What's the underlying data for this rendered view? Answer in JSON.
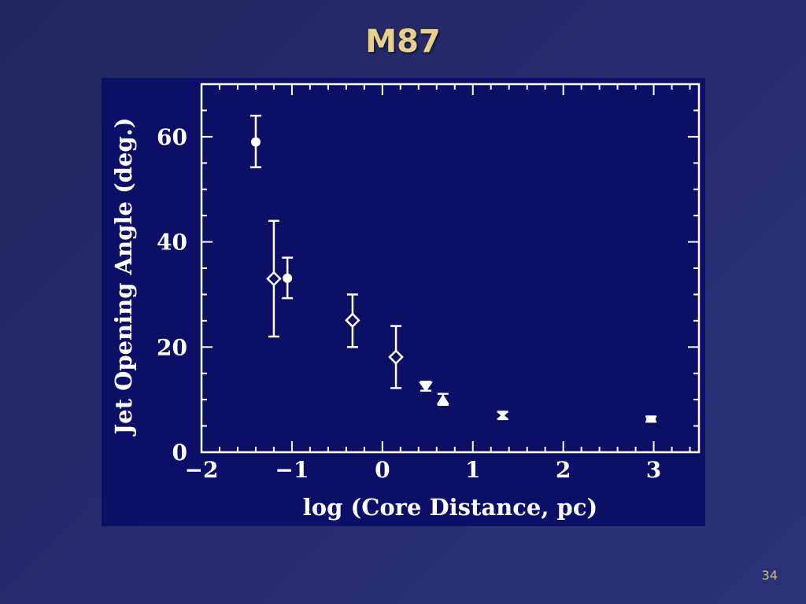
{
  "slide": {
    "title": "M87",
    "page_number": "34"
  },
  "colors": {
    "background": "#262a68",
    "plot_background": "#0b0f66",
    "ink": "#ffffff",
    "title": "#e6d08a",
    "page_number": "#c9c26a"
  },
  "chart_data": {
    "type": "scatter",
    "title": "",
    "xlabel": "log (Core Distance, pc)",
    "ylabel": "Jet Opening Angle (deg.)",
    "xlim": [
      -2,
      3.5
    ],
    "ylim": [
      0,
      70
    ],
    "x_ticks": [
      -2,
      -1,
      0,
      1,
      2,
      3
    ],
    "x_tick_labels": [
      "−2",
      "−1",
      "0",
      "1",
      "2",
      "3"
    ],
    "y_ticks": [
      0,
      20,
      40,
      60
    ],
    "y_tick_labels": [
      "0",
      "20",
      "40",
      "60"
    ],
    "grid": false,
    "legend": "none",
    "points": [
      {
        "x": -1.4,
        "y": 59.0,
        "y_low": 54.2,
        "y_high": 64.0,
        "marker": "circle"
      },
      {
        "x": -1.2,
        "y": 33.0,
        "y_low": 22.0,
        "y_high": 44.0,
        "marker": "diamond"
      },
      {
        "x": -1.05,
        "y": 33.1,
        "y_low": 29.3,
        "y_high": 37.0,
        "marker": "circle"
      },
      {
        "x": -0.33,
        "y": 25.1,
        "y_low": 20.0,
        "y_high": 30.0,
        "marker": "diamond"
      },
      {
        "x": 0.15,
        "y": 18.1,
        "y_low": 12.2,
        "y_high": 24.0,
        "marker": "diamond"
      },
      {
        "x": 0.48,
        "y": 12.5,
        "y_low": 11.7,
        "y_high": 13.4,
        "marker": "triangle-down"
      },
      {
        "x": 0.67,
        "y": 10.0,
        "y_low": 9.0,
        "y_high": 11.1,
        "marker": "triangle-up"
      },
      {
        "x": 1.33,
        "y": 7.0,
        "y_low": 6.3,
        "y_high": 7.7,
        "marker": "cross"
      },
      {
        "x": 2.97,
        "y": 6.3,
        "y_low": 5.8,
        "y_high": 6.8,
        "marker": "square"
      }
    ]
  }
}
